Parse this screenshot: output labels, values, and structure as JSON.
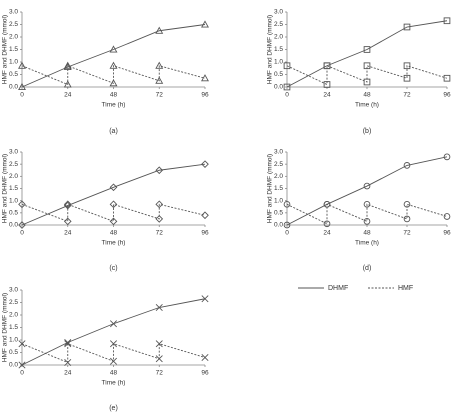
{
  "chart_data": [
    {
      "type": "line",
      "label": "(a)",
      "marker": "triangle",
      "x_label": "Time (h)",
      "y_label": "HMF and DHMF (mmol)",
      "xlim": [
        0,
        96
      ],
      "xticks": [
        0,
        24,
        48,
        72,
        96
      ],
      "ylim": [
        0,
        3
      ],
      "yticks": [
        {
          "value": 0,
          "label": "0.0"
        },
        0.5,
        {
          "value": 1,
          "label": "1.0"
        },
        1.5,
        {
          "value": 2,
          "label": "2.0"
        },
        2.5,
        {
          "value": 3,
          "label": "3.0"
        }
      ],
      "series": [
        {
          "name": "DHMF",
          "color": "#555555",
          "dash": false,
          "x": [
            0,
            24,
            48,
            72,
            96
          ],
          "values": [
            0,
            0.8,
            1.5,
            2.25,
            2.5
          ]
        },
        {
          "name": "HMF",
          "color": "#555555",
          "dash": true,
          "x": [
            0,
            24,
            24,
            48,
            48,
            72,
            72,
            96
          ],
          "values": [
            0.85,
            0.1,
            0.85,
            0.15,
            0.85,
            0.25,
            0.85,
            0.35
          ]
        }
      ]
    },
    {
      "type": "line",
      "label": "(b)",
      "marker": "square",
      "x_label": "Time (h)",
      "y_label": "HMF and DHMF (mmol)",
      "xlim": [
        0,
        96
      ],
      "xticks": [
        0,
        24,
        48,
        72,
        96
      ],
      "ylim": [
        0,
        3
      ],
      "yticks": [
        {
          "value": 0,
          "label": "0.0"
        },
        0.5,
        {
          "value": 1,
          "label": "1.0"
        },
        1.5,
        {
          "value": 2,
          "label": "2.0"
        },
        2.5,
        {
          "value": 3,
          "label": "3.0"
        }
      ],
      "series": [
        {
          "name": "DHMF",
          "color": "#555555",
          "dash": false,
          "x": [
            0,
            24,
            48,
            72,
            96
          ],
          "values": [
            0,
            0.85,
            1.5,
            2.4,
            2.65
          ]
        },
        {
          "name": "HMF",
          "color": "#555555",
          "dash": true,
          "x": [
            0,
            24,
            24,
            48,
            48,
            72,
            72,
            96
          ],
          "values": [
            0.85,
            0.1,
            0.85,
            0.2,
            0.85,
            0.35,
            0.85,
            0.35
          ]
        }
      ]
    },
    {
      "type": "line",
      "label": "(c)",
      "marker": "diamond",
      "x_label": "Time (h)",
      "y_label": "HMF and DHMF (mmol)",
      "xlim": [
        0,
        96
      ],
      "xticks": [
        0,
        24,
        48,
        72,
        96
      ],
      "ylim": [
        0,
        3
      ],
      "yticks": [
        {
          "value": 0,
          "label": "0.0"
        },
        0.5,
        {
          "value": 1,
          "label": "1.0"
        },
        1.5,
        {
          "value": 2,
          "label": "2.0"
        },
        2.5,
        {
          "value": 3,
          "label": "3.0"
        }
      ],
      "series": [
        {
          "name": "DHMF",
          "color": "#555555",
          "dash": false,
          "x": [
            0,
            24,
            48,
            72,
            96
          ],
          "values": [
            0,
            0.8,
            1.55,
            2.25,
            2.5
          ]
        },
        {
          "name": "HMF",
          "color": "#555555",
          "dash": true,
          "x": [
            0,
            24,
            24,
            48,
            48,
            72,
            72,
            96
          ],
          "values": [
            0.85,
            0.15,
            0.85,
            0.15,
            0.85,
            0.25,
            0.85,
            0.4
          ]
        }
      ]
    },
    {
      "type": "line",
      "label": "(d)",
      "marker": "circle",
      "x_label": "Time (h)",
      "y_label": "HMF and DHMF (mmol)",
      "xlim": [
        0,
        96
      ],
      "xticks": [
        0,
        24,
        48,
        72,
        96
      ],
      "ylim": [
        0,
        3
      ],
      "yticks": [
        {
          "value": 0,
          "label": "0.0"
        },
        0.5,
        {
          "value": 1,
          "label": "1.0"
        },
        1.5,
        {
          "value": 2,
          "label": "2.0"
        },
        2.5,
        {
          "value": 3,
          "label": "3.0"
        }
      ],
      "series": [
        {
          "name": "DHMF",
          "color": "#555555",
          "dash": false,
          "x": [
            0,
            24,
            48,
            72,
            96
          ],
          "values": [
            0,
            0.85,
            1.6,
            2.45,
            2.8
          ]
        },
        {
          "name": "HMF",
          "color": "#555555",
          "dash": true,
          "x": [
            0,
            24,
            24,
            48,
            48,
            72,
            72,
            96
          ],
          "values": [
            0.85,
            0.05,
            0.85,
            0.15,
            0.85,
            0.25,
            0.85,
            0.35
          ]
        }
      ]
    },
    {
      "type": "line",
      "label": "(e)",
      "marker": "cross",
      "x_label": "Time (h)",
      "y_label": "HMF and DHMF (mmol)",
      "xlim": [
        0,
        96
      ],
      "xticks": [
        0,
        24,
        48,
        72,
        96
      ],
      "ylim": [
        0,
        3
      ],
      "yticks": [
        {
          "value": 0,
          "label": "0.0"
        },
        0.5,
        {
          "value": 1,
          "label": "1.0"
        },
        1.5,
        {
          "value": 2,
          "label": "2.0"
        },
        2.5,
        {
          "value": 3,
          "label": "3.0"
        }
      ],
      "series": [
        {
          "name": "DHMF",
          "color": "#555555",
          "dash": false,
          "x": [
            0,
            24,
            48,
            72,
            96
          ],
          "values": [
            0,
            0.9,
            1.65,
            2.3,
            2.65
          ]
        },
        {
          "name": "HMF",
          "color": "#555555",
          "dash": true,
          "x": [
            0,
            24,
            24,
            48,
            48,
            72,
            72,
            96
          ],
          "values": [
            0.85,
            0.1,
            0.85,
            0.15,
            0.85,
            0.25,
            0.85,
            0.3
          ]
        }
      ]
    }
  ]
}
